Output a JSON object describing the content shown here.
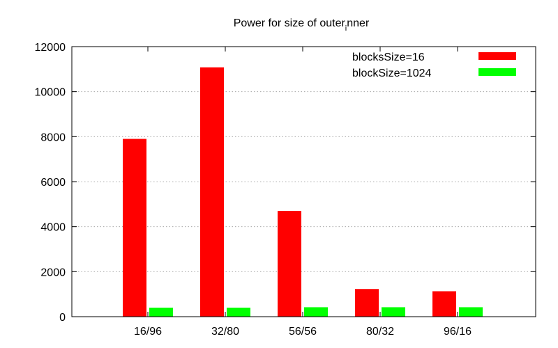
{
  "chart_data": {
    "type": "bar",
    "title": "Power for size of outer_inner",
    "title_parts": {
      "main": "Power for size of outer",
      "subscript": "i",
      "tail": "nner"
    },
    "xlabel": "",
    "ylabel": "",
    "categories": [
      "16/96",
      "32/80",
      "56/56",
      "80/32",
      "96/16"
    ],
    "series": [
      {
        "name": "blocksSize=16",
        "color": "#ff0000",
        "values": [
          7900,
          11080,
          4700,
          1230,
          1130
        ]
      },
      {
        "name": "blockSize=1024",
        "color": "#00ff00",
        "values": [
          400,
          400,
          420,
          420,
          420
        ]
      }
    ],
    "ylim": [
      0,
      12000
    ],
    "yticks": [
      0,
      2000,
      4000,
      6000,
      8000,
      10000,
      12000
    ],
    "grid": true,
    "legend_position": "top-right"
  }
}
